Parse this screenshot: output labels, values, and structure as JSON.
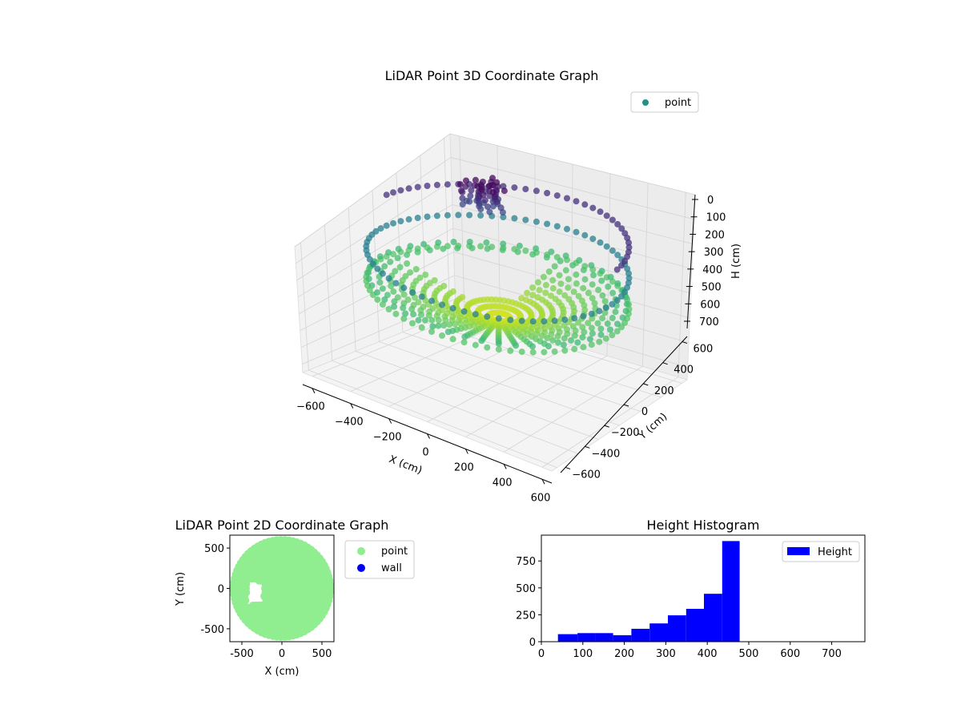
{
  "chart_data": [
    {
      "type": "scatter",
      "projection": "3d",
      "title": "LiDAR Point 3D Coordinate Graph",
      "xlabel": "X (cm)",
      "ylabel": "Y (cm)",
      "zlabel": "H (cm)",
      "xticks": [
        "−600",
        "−400",
        "−200",
        "0",
        "200",
        "400",
        "600"
      ],
      "yticks": [
        "−600",
        "−400",
        "−200",
        "0",
        "200",
        "400",
        "600"
      ],
      "zticks": [
        "0",
        "100",
        "200",
        "300",
        "400",
        "500",
        "600",
        "700"
      ],
      "xlim": [
        -650,
        650
      ],
      "ylim": [
        -650,
        650
      ],
      "zlim": [
        0,
        750
      ],
      "z_inverted": true,
      "grid": true,
      "colormap": "viridis",
      "legend": {
        "placement": "top-right",
        "entries": [
          {
            "label": "point",
            "color": "#21918c"
          }
        ]
      },
      "series": [
        {
          "name": "point",
          "shape": "floor disc with low/high rim and cluster near (-300, 350)"
        }
      ]
    },
    {
      "type": "scatter",
      "title": "LiDAR Point 2D Coordinate Graph",
      "xlabel": "X (cm)",
      "ylabel": "Y (cm)",
      "xticks": [
        -500,
        0,
        500
      ],
      "yticks": [
        -500,
        0,
        500
      ],
      "xlim": [
        -650,
        650
      ],
      "ylim": [
        -660,
        660
      ],
      "grid": false,
      "legend": {
        "placement": "outside-right",
        "entries": [
          {
            "label": "point",
            "color": "#90ee90"
          },
          {
            "label": "wall",
            "color": "#0000ee"
          }
        ]
      },
      "series": [
        {
          "name": "point",
          "color": "#90ee90",
          "shape": "disc radius ~610 with notch near x=-300..-200"
        },
        {
          "name": "wall",
          "color": "#0000ee",
          "values": []
        }
      ]
    },
    {
      "type": "bar",
      "subtype": "histogram",
      "title": "Height Histogram",
      "xticks": [
        0,
        100,
        200,
        300,
        400,
        500,
        600,
        700
      ],
      "yticks": [
        0,
        250,
        500,
        750
      ],
      "xlim": [
        0,
        780
      ],
      "ylim": [
        0,
        990
      ],
      "color": "#0000ff",
      "legend": {
        "placement": "top-right",
        "entries": [
          {
            "label": "Height",
            "color": "#0000ff"
          }
        ]
      },
      "bins": [
        {
          "start": 40,
          "end": 87,
          "count": 70
        },
        {
          "start": 87,
          "end": 130,
          "count": 80
        },
        {
          "start": 130,
          "end": 173,
          "count": 80
        },
        {
          "start": 173,
          "end": 217,
          "count": 60
        },
        {
          "start": 217,
          "end": 261,
          "count": 120
        },
        {
          "start": 261,
          "end": 305,
          "count": 170
        },
        {
          "start": 305,
          "end": 349,
          "count": 245
        },
        {
          "start": 349,
          "end": 392,
          "count": 305
        },
        {
          "start": 392,
          "end": 436,
          "count": 445
        },
        {
          "start": 436,
          "end": 478,
          "count": 935
        }
      ]
    }
  ]
}
